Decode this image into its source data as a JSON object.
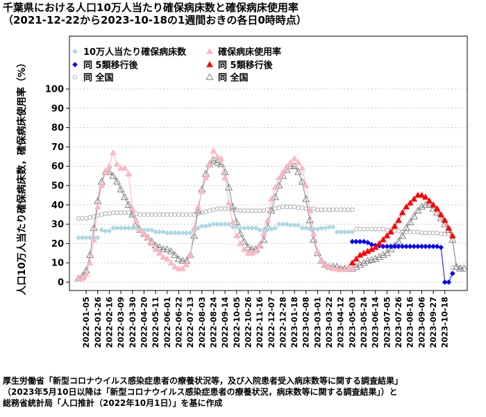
{
  "chart_data": {
    "type": "scatter",
    "title": "千葉県における人口10万人当たり確保病床数と確保病床使用率",
    "subtitle": "（2021-12-22から2023-10-18の1週間おきの各日0時時点）",
    "ylabel": "人口10万人当たり確保病床数，確保病床使用率（%）",
    "xlabel": "",
    "ylim": [
      0,
      100
    ],
    "y_ticks": [
      0,
      10,
      20,
      30,
      40,
      50,
      60,
      70,
      80,
      90,
      100
    ],
    "grid": true,
    "legend_position": "top-left",
    "start_date": "2021-12-22",
    "x_tick_labels": [
      "2022-01-05",
      "2022-01-26",
      "2022-02-16",
      "2022-03-09",
      "2022-03-30",
      "2022-04-20",
      "2022-05-11",
      "2022-06-01",
      "2022-06-22",
      "2022-07-13",
      "2022-08-03",
      "2022-08-24",
      "2022-09-14",
      "2022-10-05",
      "2022-10-26",
      "2022-11-16",
      "2022-12-07",
      "2022-12-28",
      "2023-01-18",
      "2023-02-08",
      "2023-03-01",
      "2023-03-22",
      "2023-04-12",
      "2023-05-03",
      "2023-05-24",
      "2023-06-14",
      "2023-07-05",
      "2023-07-26",
      "2023-08-16",
      "2023-09-06",
      "2023-09-27",
      "2023-10-18"
    ],
    "legend": [
      {
        "label": "10万人当たり確保病床数",
        "series": "beds_per_100k"
      },
      {
        "label": "確保病床使用率",
        "series": "usage_rate"
      },
      {
        "label": "同 5類移行後",
        "series": "beds_per_100k_post5"
      },
      {
        "label": "同 5類移行後",
        "series": "usage_rate_post5"
      },
      {
        "label": "同 全国",
        "series": "beds_per_100k_national"
      },
      {
        "label": "同 全国",
        "series": "usage_rate_national"
      }
    ],
    "series": [
      {
        "name": "beds_per_100k",
        "label": "10万人当たり確保病床数",
        "color": "#add8e6",
        "marker": "diamond",
        "connected": false,
        "start_week": 0,
        "values": [
          23,
          23,
          23,
          23,
          23,
          23,
          27,
          26.5,
          26.5,
          28,
          28,
          28,
          28,
          28,
          28,
          28,
          27,
          27,
          27,
          27,
          26,
          26,
          26,
          25.5,
          25.5,
          25.5,
          25.5,
          25.5,
          25.5,
          25.5,
          26.5,
          28,
          29,
          29,
          29.5,
          30,
          30,
          30,
          30,
          30,
          28.5,
          28.5,
          28,
          28,
          28,
          28,
          28,
          27,
          27,
          27,
          27.5,
          28,
          30,
          30,
          30,
          29.5,
          29.5,
          29.5,
          28,
          28,
          27.5,
          27.5,
          27.5,
          28,
          28,
          28.5,
          28.5,
          26,
          26,
          26,
          26,
          26
        ]
      },
      {
        "name": "usage_rate",
        "label": "確保病床使用率",
        "color": "#ffb6c1",
        "marker": "triangle-up",
        "connected": true,
        "start_week": 0,
        "values": [
          2,
          2,
          4,
          10,
          22,
          39,
          50,
          57,
          60,
          67,
          61,
          59,
          59,
          56,
          38,
          32,
          27,
          25,
          23,
          20,
          17,
          15,
          13,
          12,
          10,
          8,
          7,
          7,
          9,
          14,
          28,
          39,
          47,
          54,
          61,
          68,
          65,
          64,
          54,
          41,
          31,
          24,
          20,
          17,
          15,
          15,
          16,
          19,
          25,
          32,
          43,
          49,
          54,
          57,
          60,
          62,
          64,
          62,
          59,
          50,
          37,
          25,
          16,
          11,
          9,
          8,
          7,
          7,
          6.5,
          6.5,
          7,
          7.5
        ]
      },
      {
        "name": "beds_per_100k_post5",
        "label": "同 5類移行後",
        "color": "#0000ff",
        "marker": "diamond",
        "connected": true,
        "start_week": 71,
        "values": [
          21,
          21,
          21,
          21,
          20.5,
          19.5,
          19,
          18.8,
          18.5,
          18.5,
          18.5,
          18.5,
          18.5,
          18.5,
          18.5,
          18.5,
          18.5,
          18.5,
          18.5,
          18.5,
          18.5,
          18.5,
          18.5,
          18,
          0,
          0,
          4.5
        ]
      },
      {
        "name": "usage_rate_post5",
        "label": "同 5類移行後",
        "color": "#ff0000",
        "marker": "triangle-up",
        "connected": true,
        "start_week": 71,
        "values": [
          10,
          12,
          14,
          15,
          16,
          17,
          18,
          20,
          22,
          24,
          26,
          29,
          32,
          36,
          39,
          41,
          43,
          45,
          45,
          44,
          42,
          40,
          38,
          35,
          32,
          28,
          24
        ]
      },
      {
        "name": "beds_per_100k_national",
        "label": "同 全国",
        "color": "#b0b0b0",
        "marker": "circle-open",
        "connected": false,
        "start_week": 0,
        "values": [
          33,
          33,
          33,
          33.5,
          34,
          34.5,
          35,
          35.5,
          35.5,
          36,
          36,
          36,
          36,
          36,
          35.5,
          35.5,
          35,
          35,
          35,
          35,
          35,
          35,
          35,
          35,
          35,
          35,
          35,
          35,
          35,
          35,
          35,
          35.5,
          36,
          36.5,
          37,
          37.5,
          38,
          38,
          38,
          38,
          37.5,
          37.5,
          37,
          37,
          37,
          37,
          37,
          37,
          37,
          37.5,
          37.5,
          38,
          38.5,
          39,
          39,
          39,
          39,
          38.5,
          38.5,
          38,
          38,
          38,
          37.5,
          37.5,
          37.5,
          37.5,
          37.5,
          37.5,
          37.5,
          37.5,
          37.5,
          37.5,
          27.5,
          27.5,
          27.5,
          27.5,
          27.5,
          27.5,
          27.5,
          27.5,
          27,
          27,
          26.5,
          26.5,
          26,
          26,
          26,
          26,
          26,
          25.5,
          25.5,
          25.5,
          25.5,
          25.5,
          25,
          25,
          25,
          7.5,
          7.5,
          7.5
        ]
      },
      {
        "name": "usage_rate_national",
        "label": "同 全国",
        "color": "#808080",
        "marker": "triangle-open",
        "connected": true,
        "start_week": 0,
        "values": [
          2,
          3,
          6,
          14,
          28,
          42,
          52,
          57,
          57,
          55,
          52,
          48,
          44,
          40,
          35,
          30,
          27,
          25,
          23,
          21,
          19,
          18,
          17,
          17,
          16,
          14,
          12,
          11,
          11,
          14,
          24,
          37,
          48,
          56,
          61,
          63,
          62,
          61,
          57,
          49,
          39,
          31,
          25,
          21,
          18,
          17,
          17,
          19,
          22,
          29,
          37,
          44,
          50,
          55,
          58,
          60,
          60,
          57,
          52,
          43,
          32,
          22,
          15,
          11,
          9,
          8,
          8,
          8,
          7,
          7,
          7,
          7,
          8,
          9,
          10,
          11,
          11.5,
          12,
          13,
          14,
          15,
          17,
          19,
          21,
          24,
          28,
          31,
          34,
          37,
          39,
          40,
          40,
          38,
          36,
          33,
          30,
          27,
          22,
          8,
          7,
          7
        ]
      }
    ]
  },
  "source": {
    "line1": "厚生労働省「新型コロナウイルス感染症患者の療養状況等，及び入院患者受入病床数等に関する調査結果」",
    "line2": "（2023年5月10日以降は「新型コロナウイルス感染症患者の療養状況，病床数等に関する調査結果」）と",
    "line3": "総務省統計局「人口推計（2022年10月1日）」を基に作成"
  }
}
